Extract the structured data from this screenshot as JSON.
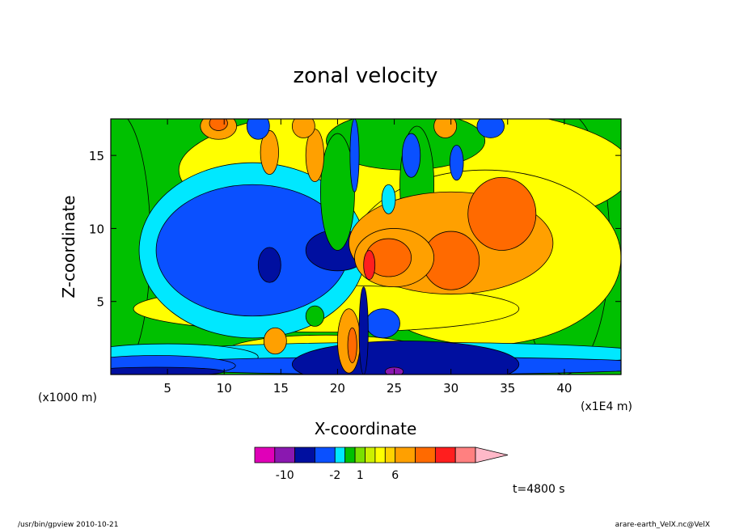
{
  "chart_data": {
    "type": "heatmap",
    "title": "zonal velocity",
    "xlabel": "X-coordinate",
    "ylabel": "Z-coordinate",
    "x_unit_left": "(x1000 m)",
    "x_unit_right": "(x1E4 m)",
    "xlim": [
      0,
      45
    ],
    "ylim": [
      0,
      17.5
    ],
    "x_ticks": [
      5,
      10,
      15,
      20,
      25,
      30,
      35,
      40
    ],
    "y_ticks": [
      5,
      10,
      15
    ],
    "colorbar": {
      "colors": [
        "#e000b8",
        "#8a18b0",
        "#000fa0",
        "#0a50ff",
        "#00e8ff",
        "#00c000",
        "#7ae000",
        "#ccf000",
        "#ffff00",
        "#ffd200",
        "#ffa000",
        "#ff6a00",
        "#ff1e1e",
        "#ff8080",
        "#ffb8c8"
      ],
      "tick_labels": [
        {
          "label": "-10",
          "index": 1.5
        },
        {
          "label": "-2",
          "index": 4.0
        },
        {
          "label": "1",
          "index": 6.5
        },
        {
          "label": "6",
          "index": 10.0
        }
      ]
    },
    "annotation": "t=4800 s",
    "footer_left": "/usr/bin/gpview   2010-10-21",
    "footer_right": "arare-earth_VelX.nc@VelX",
    "regions": [
      {
        "color": "#00c000",
        "x": 0.5,
        "z": 9,
        "rx": 3,
        "rz": 9
      },
      {
        "color": "#00c000",
        "x": 40,
        "z": 9,
        "rx": 4,
        "rz": 9
      },
      {
        "color": "#ffff00",
        "x": 26,
        "z": 14,
        "rx": 20,
        "rz": 4.5
      },
      {
        "color": "#00c000",
        "x": 26,
        "z": 16,
        "rx": 7,
        "rz": 2
      },
      {
        "color": "#ffff00",
        "x": 33,
        "z": 8,
        "rx": 12,
        "rz": 6
      },
      {
        "color": "#ffff00",
        "x": 19,
        "z": 4.5,
        "rx": 17,
        "rz": 1.6
      },
      {
        "color": "#ffff00",
        "x": 19,
        "z": 1.5,
        "rx": 9,
        "rz": 1.2
      },
      {
        "color": "#00e8ff",
        "x": 12.5,
        "z": 8.5,
        "rx": 10,
        "rz": 6
      },
      {
        "color": "#0a50ff",
        "x": 12.5,
        "z": 8.5,
        "rx": 8.5,
        "rz": 4.5
      },
      {
        "color": "#000fa0",
        "x": 20,
        "z": 8.5,
        "rx": 2.8,
        "rz": 1.4
      },
      {
        "color": "#000fa0",
        "x": 14,
        "z": 7.5,
        "rx": 1,
        "rz": 1.2
      },
      {
        "color": "#00c000",
        "x": 20,
        "z": 12.5,
        "rx": 1.5,
        "rz": 4
      },
      {
        "color": "#00c000",
        "x": 27,
        "z": 13,
        "rx": 1.5,
        "rz": 4
      },
      {
        "color": "#ffa000",
        "x": 30,
        "z": 9,
        "rx": 9,
        "rz": 3.5
      },
      {
        "color": "#ff6a00",
        "x": 34.5,
        "z": 11,
        "rx": 3,
        "rz": 2.5
      },
      {
        "color": "#ff6a00",
        "x": 30,
        "z": 7.8,
        "rx": 2.5,
        "rz": 2
      },
      {
        "color": "#ffa000",
        "x": 25,
        "z": 8,
        "rx": 3.5,
        "rz": 2
      },
      {
        "color": "#ff6a00",
        "x": 24.5,
        "z": 8,
        "rx": 2,
        "rz": 1.3
      },
      {
        "color": "#ff1e1e",
        "x": 22.8,
        "z": 7.5,
        "rx": 0.5,
        "rz": 1
      },
      {
        "color": "#ffa000",
        "x": 14,
        "z": 15.2,
        "rx": 0.8,
        "rz": 1.5
      },
      {
        "color": "#ffa000",
        "x": 18,
        "z": 15,
        "rx": 0.8,
        "rz": 1.8
      },
      {
        "color": "#0a50ff",
        "x": 26.5,
        "z": 15,
        "rx": 0.8,
        "rz": 1.5
      },
      {
        "color": "#0a50ff",
        "x": 30.5,
        "z": 14.5,
        "rx": 0.6,
        "rz": 1.2
      },
      {
        "color": "#0a50ff",
        "x": 13,
        "z": 17,
        "rx": 1,
        "rz": 0.9
      },
      {
        "color": "#0a50ff",
        "x": 33.5,
        "z": 17,
        "rx": 1.2,
        "rz": 0.8
      },
      {
        "color": "#ffa000",
        "x": 9.5,
        "z": 17,
        "rx": 1.6,
        "rz": 0.9
      },
      {
        "color": "#ff6a00",
        "x": 9.5,
        "z": 17.2,
        "rx": 0.8,
        "rz": 0.5
      },
      {
        "color": "#ffa000",
        "x": 17,
        "z": 17,
        "rx": 1,
        "rz": 0.8
      },
      {
        "color": "#ffa000",
        "x": 29.5,
        "z": 17,
        "rx": 1,
        "rz": 0.8
      },
      {
        "color": "#00e8ff",
        "x": 26,
        "z": 1.4,
        "rx": 22,
        "rz": 0.8
      },
      {
        "color": "#00e8ff",
        "x": 5,
        "z": 1.2,
        "rx": 8,
        "rz": 0.9
      },
      {
        "color": "#0a50ff",
        "x": 26,
        "z": 0.6,
        "rx": 24,
        "rz": 0.6
      },
      {
        "color": "#0a50ff",
        "x": 4,
        "z": 0.6,
        "rx": 7,
        "rz": 0.7
      },
      {
        "color": "#000fa0",
        "x": 26,
        "z": 0.7,
        "rx": 10,
        "rz": 1.6
      },
      {
        "color": "#000fa0",
        "x": 4,
        "z": 0.2,
        "rx": 6,
        "rz": 0.3
      },
      {
        "color": "#0a50ff",
        "x": 24,
        "z": 3.5,
        "rx": 1.5,
        "rz": 1
      },
      {
        "color": "#8a18b0",
        "x": 25,
        "z": 0.2,
        "rx": 0.8,
        "rz": 0.3
      },
      {
        "color": "#ffa000",
        "x": 21,
        "z": 2.3,
        "rx": 1,
        "rz": 2.2
      },
      {
        "color": "#ff6a00",
        "x": 21.3,
        "z": 2,
        "rx": 0.4,
        "rz": 1.2
      },
      {
        "color": "#ffa000",
        "x": 14.5,
        "z": 2.3,
        "rx": 1,
        "rz": 0.9
      },
      {
        "color": "#00c000",
        "x": 18,
        "z": 4,
        "rx": 0.8,
        "rz": 0.7
      },
      {
        "color": "#000fa0",
        "x": 22.3,
        "z": 3,
        "rx": 0.4,
        "rz": 3
      },
      {
        "color": "#0a50ff",
        "x": 21.5,
        "z": 15,
        "rx": 0.4,
        "rz": 2.5
      },
      {
        "color": "#00e8ff",
        "x": 24.5,
        "z": 12,
        "rx": 0.6,
        "rz": 1
      }
    ]
  }
}
